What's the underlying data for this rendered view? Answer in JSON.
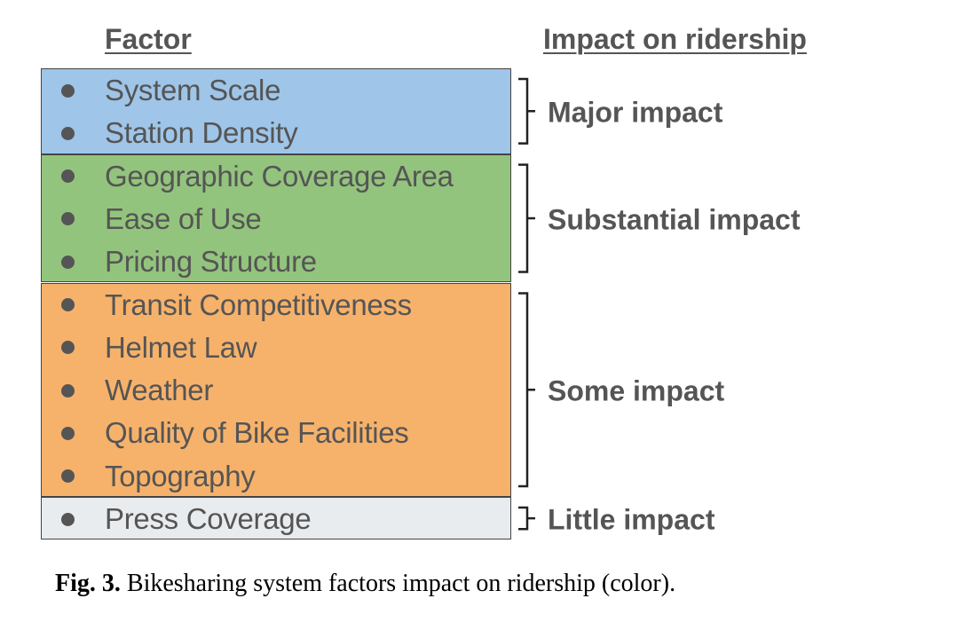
{
  "headers": {
    "factor": "Factor",
    "impact": "Impact on ridership"
  },
  "groups": [
    {
      "impact": "Major impact",
      "color": "#9fc5e8",
      "items": [
        "System Scale",
        "Station Density"
      ]
    },
    {
      "impact": "Substantial impact",
      "color": "#93c47d",
      "items": [
        "Geographic Coverage Area",
        "Ease of Use",
        "Pricing Structure"
      ]
    },
    {
      "impact": "Some impact",
      "color": "#f6b26b",
      "items": [
        "Transit Competitiveness",
        "Helmet Law",
        "Weather",
        "Quality of Bike Facilities",
        "Topography"
      ]
    },
    {
      "impact": "Little impact",
      "color": "#e9ecef",
      "items": [
        "Press Coverage"
      ]
    }
  ],
  "caption": {
    "figure": "Fig. 3.",
    "text": " Bikesharing system factors impact on ridership (color)."
  }
}
